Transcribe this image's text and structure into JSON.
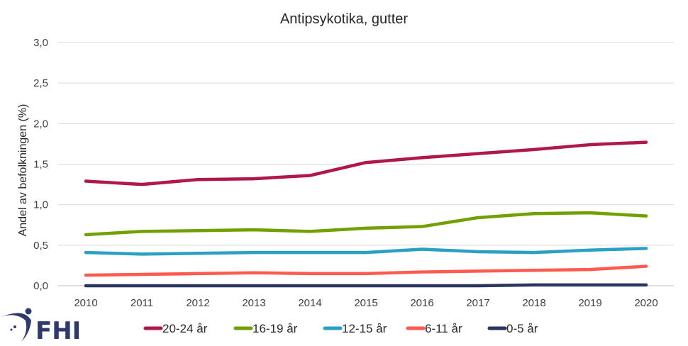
{
  "chart_data": {
    "type": "line",
    "title": "Antipsykotika, gutter",
    "xlabel": "",
    "ylabel": "Andel av befolkningen (%)",
    "ylim": [
      0,
      3.0
    ],
    "yticks": [
      "0,0",
      "0,5",
      "1,0",
      "1,5",
      "2,0",
      "2,5",
      "3,0"
    ],
    "ytick_values": [
      0,
      0.5,
      1.0,
      1.5,
      2.0,
      2.5,
      3.0
    ],
    "grid": true,
    "legend_position": "bottom",
    "categories": [
      "2010",
      "2011",
      "2012",
      "2013",
      "2014",
      "2015",
      "2016",
      "2017",
      "2018",
      "2019",
      "2020"
    ],
    "series": [
      {
        "name": "20-24 år",
        "color": "#b0174a",
        "values": [
          1.29,
          1.25,
          1.31,
          1.32,
          1.36,
          1.52,
          1.58,
          1.63,
          1.68,
          1.74,
          1.77
        ]
      },
      {
        "name": "16-19 år",
        "color": "#72a000",
        "values": [
          0.63,
          0.67,
          0.68,
          0.69,
          0.67,
          0.71,
          0.73,
          0.84,
          0.89,
          0.9,
          0.86
        ]
      },
      {
        "name": "12-15 år",
        "color": "#2aa1c4",
        "values": [
          0.41,
          0.39,
          0.4,
          0.41,
          0.41,
          0.41,
          0.45,
          0.42,
          0.41,
          0.44,
          0.46
        ]
      },
      {
        "name": "6-11 år",
        "color": "#ff5a50",
        "values": [
          0.13,
          0.14,
          0.15,
          0.16,
          0.15,
          0.15,
          0.17,
          0.18,
          0.19,
          0.2,
          0.24
        ]
      },
      {
        "name": "0-5 år",
        "color": "#2c3560",
        "values": [
          0.0,
          0.0,
          0.0,
          0.0,
          0.0,
          0.0,
          0.0,
          0.0,
          0.01,
          0.01,
          0.01
        ]
      }
    ]
  },
  "logo": {
    "text": "FHI",
    "color": "#2e3a6b"
  }
}
